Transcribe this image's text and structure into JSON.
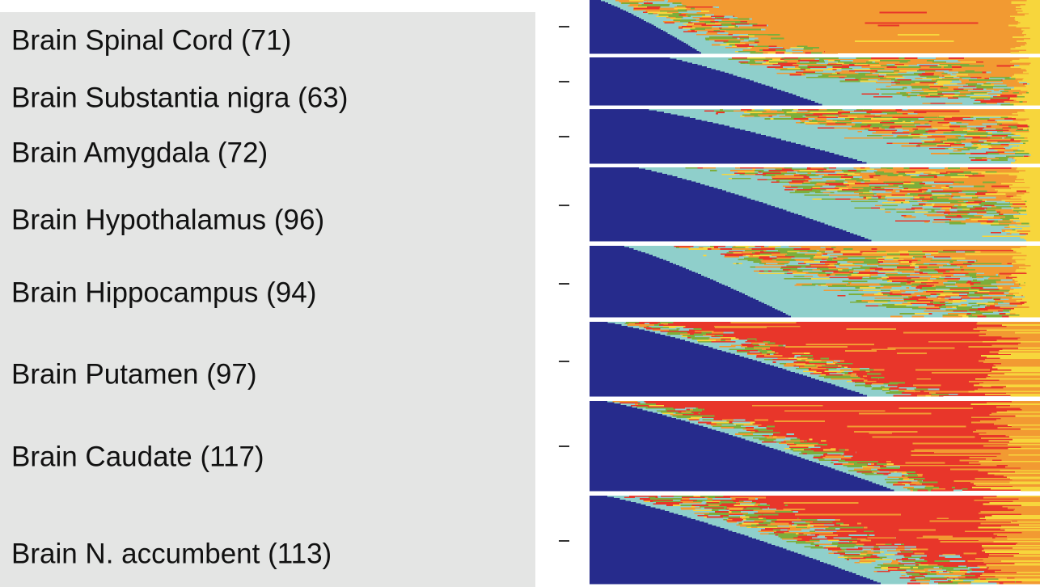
{
  "colors": {
    "navy": "#262b8c",
    "teal": "#8fcfcb",
    "green": "#7cae3b",
    "red": "#e8362a",
    "orange": "#f29a32",
    "yellow": "#f7d63c",
    "panel": "#e4e5e4",
    "background": "#ffffff"
  },
  "chart_data": {
    "type": "area",
    "title": "",
    "xlabel": "",
    "ylabel": "",
    "groups": [
      {
        "label": "Brain Spinal Cord (71)",
        "dominant": "orange",
        "navy_start": 0.02,
        "navy_end": 0.25,
        "teal_extent": 0.08,
        "mixing_zone": 0.15,
        "orange_share": 0.95
      },
      {
        "label": "Brain Substantia nigra (63)",
        "dominant": "orange",
        "navy_start": 0.17,
        "navy_end": 0.52,
        "teal_extent": 0.3,
        "mixing_zone": 0.4,
        "orange_share": 0.8
      },
      {
        "label": "Brain Amygdala (72)",
        "dominant": "orange",
        "navy_start": 0.12,
        "navy_end": 0.62,
        "teal_extent": 0.35,
        "mixing_zone": 0.45,
        "orange_share": 0.72
      },
      {
        "label": "Brain Hypothalamus (96)",
        "dominant": "orange",
        "navy_start": 0.1,
        "navy_end": 0.63,
        "teal_extent": 0.35,
        "mixing_zone": 0.45,
        "orange_share": 0.68
      },
      {
        "label": "Brain Hippocampus (94)",
        "dominant": "orange",
        "navy_start": 0.07,
        "navy_end": 0.45,
        "teal_extent": 0.35,
        "mixing_zone": 0.45,
        "orange_share": 0.78
      },
      {
        "label": "Brain Putamen (97)",
        "dominant": "red",
        "navy_start": 0.03,
        "navy_end": 0.62,
        "teal_extent": 0.05,
        "mixing_zone": 0.12,
        "orange_share": 0.22
      },
      {
        "label": "Brain Caudate (117)",
        "dominant": "red",
        "navy_start": 0.03,
        "navy_end": 0.68,
        "teal_extent": 0.04,
        "mixing_zone": 0.1,
        "orange_share": 0.2
      },
      {
        "label": "Brain N. accumbent (113)",
        "dominant": "red",
        "navy_start": 0.03,
        "navy_end": 0.65,
        "teal_extent": 0.1,
        "mixing_zone": 0.2,
        "orange_share": 0.25
      }
    ]
  }
}
